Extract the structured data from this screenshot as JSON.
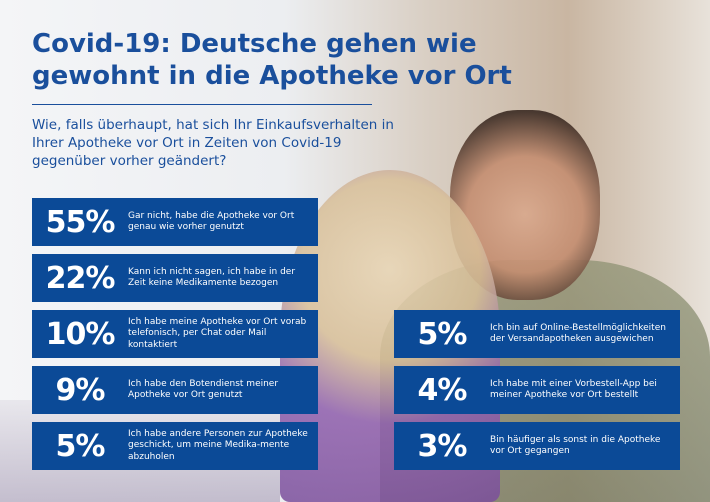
{
  "title": "Covid-19: Deutsche gehen wie gewohnt in die Apotheke vor Ort",
  "question": "Wie, falls überhaupt, hat sich Ihr Einkaufsverhalten in Ihrer Apotheke vor Ort in Zeiten von Covid-19 gegenüber vorher geändert?",
  "colors": {
    "box": "#0b4a97",
    "title": "#1a4f9c"
  },
  "left_items": [
    {
      "value": "55%",
      "text": "Gar nicht, habe die Apotheke vor Ort genau wie vorher genutzt"
    },
    {
      "value": "22%",
      "text": "Kann ich nicht sagen, ich habe in der Zeit keine Medikamente bezogen"
    },
    {
      "value": "10%",
      "text": "Ich habe meine Apotheke vor Ort vorab telefonisch, per Chat oder Mail kontaktiert"
    },
    {
      "value": "9%",
      "text": "Ich habe den Botendienst meiner Apotheke vor Ort genutzt"
    },
    {
      "value": "5%",
      "text": "Ich habe andere Personen zur Apotheke geschickt, um meine Medika-mente abzuholen"
    }
  ],
  "right_items": [
    {
      "value": "5%",
      "text": "Ich bin auf Online-Bestellmöglichkeiten der Versandapotheken ausgewichen"
    },
    {
      "value": "4%",
      "text": "Ich habe mit einer Vorbestell-App bei meiner Apotheke vor Ort bestellt"
    },
    {
      "value": "3%",
      "text": "Bin häufiger als sonst in die Apotheke vor Ort gegangen"
    }
  ]
}
